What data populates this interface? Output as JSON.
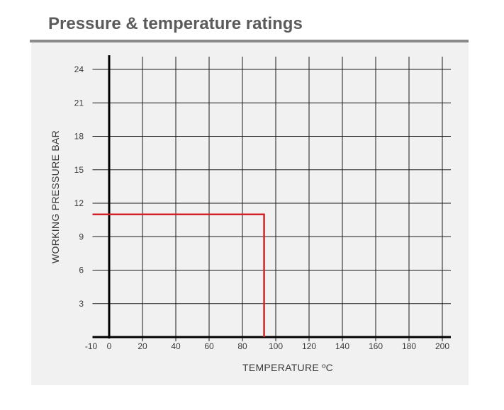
{
  "header": {
    "title": "Pressure & temperature ratings"
  },
  "colors": {
    "rating_line": "#d2232a",
    "grid": "#1a1a1a",
    "panel": "#f1f1f1",
    "title": "#5b5b5b"
  },
  "chart_data": {
    "type": "line",
    "title": "",
    "xlabel": "TEMPERATURE ºC",
    "ylabel": "WORKING PRESSURE BAR",
    "xlim": [
      -10,
      205
    ],
    "ylim": [
      0,
      25
    ],
    "x_ticks": [
      -10,
      0,
      20,
      40,
      60,
      80,
      100,
      120,
      140,
      160,
      180,
      200
    ],
    "x_tick_labels": [
      "-10",
      "0",
      "20",
      "40",
      "60",
      "80",
      "100",
      "120",
      "140",
      "160",
      "180",
      "200"
    ],
    "y_ticks": [
      3,
      6,
      9,
      12,
      15,
      18,
      21,
      24
    ],
    "y_tick_labels": [
      "3",
      "6",
      "9",
      "12",
      "15",
      "18",
      "21",
      "24"
    ],
    "grid": true,
    "series": [
      {
        "x": [
          -10,
          93,
          93
        ],
        "y": [
          11,
          11,
          0
        ]
      }
    ]
  }
}
